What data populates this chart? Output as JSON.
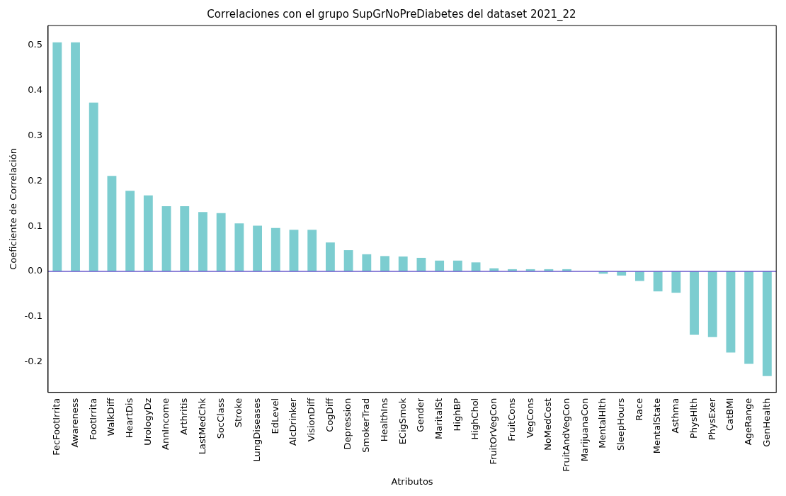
{
  "chart_data": {
    "type": "bar",
    "title": "Correlaciones con el grupo SupGrNoPreDiabetes del dataset 2021_22",
    "xlabel": "Atributos",
    "ylabel": "Coeficiente de Correlación",
    "categories": [
      "FecFootIrrita",
      "Awareness",
      "FootIrrita",
      "WalkDiff",
      "HeartDis",
      "UrologyDz",
      "AnnIncome",
      "Arthritis",
      "LastMedChk",
      "SocClass",
      "Stroke",
      "LungDiseases",
      "EdLevel",
      "AlcDrinker",
      "VisionDiff",
      "CogDiff",
      "Depression",
      "SmokerTrad",
      "HealthIns",
      "ECigSmok",
      "Gender",
      "MaritalSt",
      "HighBP",
      "HighChol",
      "FruitOrVegCon",
      "FruitCons",
      "VegCons",
      "NoMedCost",
      "FruitAndVegCon",
      "MarijuanaCon",
      "MentalHlth",
      "SleepHours",
      "Race",
      "MentalState",
      "Asthma",
      "PhysHlth",
      "PhysExer",
      "CatBMI",
      "AgeRange",
      "GenHealth"
    ],
    "values": [
      0.506,
      0.506,
      0.373,
      0.211,
      0.178,
      0.168,
      0.144,
      0.144,
      0.131,
      0.129,
      0.106,
      0.101,
      0.096,
      0.092,
      0.092,
      0.064,
      0.047,
      0.038,
      0.034,
      0.033,
      0.03,
      0.024,
      0.024,
      0.02,
      0.007,
      0.005,
      0.005,
      0.005,
      0.005,
      0,
      -0.005,
      -0.009,
      -0.021,
      -0.044,
      -0.047,
      -0.14,
      -0.145,
      -0.179,
      -0.204,
      -0.231
    ],
    "color": "#7ccdd0",
    "ylim": [
      -0.267,
      0.543
    ],
    "yticks": [
      -0.2,
      -0.1,
      {
        "value": 0,
        "label": "0.0"
      },
      0.1,
      0.2,
      0.3,
      0.4,
      0.5
    ],
    "grid": false,
    "legend": false,
    "ref_lines": [
      {
        "axis": "y",
        "value": 0,
        "color": "#6a5acd"
      }
    ]
  }
}
